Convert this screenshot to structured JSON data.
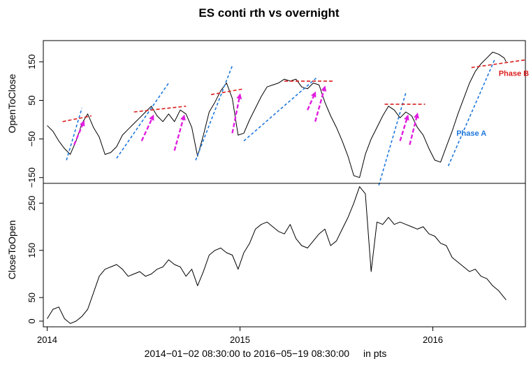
{
  "chart_data": {
    "type": "line",
    "title": "ES conti rth vs overnight",
    "xlabel": "2014−01−02 08:30:00 to 2016−05−19 08:30:00",
    "xlabel_unit": "in pts",
    "x_ticks": [
      {
        "label": "2014",
        "value": 2014.0
      },
      {
        "label": "2015",
        "value": 2015.0
      },
      {
        "label": "2016",
        "value": 2016.0
      }
    ],
    "xlim": [
      2013.98,
      2016.48
    ],
    "colors": {
      "series": "#000000",
      "trend_lines": "#1e78dc",
      "resistance_lines": "#dc1e1e",
      "arrows": "#e01ee0"
    },
    "panels": [
      {
        "name": "top",
        "ylabel": "OpenToClose",
        "ylim": [
          -165,
          205
        ],
        "y_ticks": [
          -150,
          -50,
          50,
          150
        ],
        "y_tick_labels": [
          "−150",
          "−50",
          "50",
          "150"
        ],
        "x": [
          2014.0,
          2014.03,
          2014.06,
          2014.09,
          2014.12,
          2014.15,
          2014.18,
          2014.21,
          2014.24,
          2014.27,
          2014.3,
          2014.33,
          2014.36,
          2014.39,
          2014.42,
          2014.45,
          2014.48,
          2014.51,
          2014.54,
          2014.57,
          2014.6,
          2014.63,
          2014.66,
          2014.69,
          2014.72,
          2014.75,
          2014.78,
          2014.81,
          2014.84,
          2014.87,
          2014.9,
          2014.93,
          2014.96,
          2014.99,
          2015.02,
          2015.05,
          2015.08,
          2015.11,
          2015.14,
          2015.17,
          2015.2,
          2015.23,
          2015.26,
          2015.29,
          2015.32,
          2015.35,
          2015.38,
          2015.41,
          2015.44,
          2015.47,
          2015.5,
          2015.53,
          2015.56,
          2015.59,
          2015.62,
          2015.65,
          2015.68,
          2015.71,
          2015.74,
          2015.77,
          2015.8,
          2015.83,
          2015.86,
          2015.89,
          2015.92,
          2015.95,
          2015.98,
          2016.01,
          2016.04,
          2016.07,
          2016.1,
          2016.13,
          2016.16,
          2016.19,
          2016.22,
          2016.25,
          2016.28,
          2016.31,
          2016.34,
          2016.37,
          2016.38
        ],
        "y": [
          -15,
          -30,
          -55,
          -75,
          -90,
          -55,
          -10,
          15,
          -20,
          -45,
          -90,
          -85,
          -70,
          -40,
          -25,
          -10,
          5,
          20,
          35,
          10,
          -5,
          15,
          -5,
          25,
          15,
          -20,
          -95,
          -40,
          20,
          45,
          75,
          95,
          55,
          -40,
          -35,
          0,
          30,
          60,
          85,
          90,
          95,
          105,
          100,
          105,
          85,
          80,
          95,
          90,
          45,
          10,
          -20,
          -55,
          -95,
          -145,
          -150,
          -90,
          -50,
          -20,
          10,
          35,
          25,
          5,
          20,
          10,
          -20,
          -40,
          -75,
          -105,
          -110,
          -70,
          -30,
          15,
          55,
          95,
          125,
          145,
          160,
          175,
          170,
          160,
          150
        ],
        "trend_lines": [
          {
            "x": [
              2014.1,
              2014.18
            ],
            "y": [
              -105,
              30
            ]
          },
          {
            "x": [
              2014.36,
              2014.63
            ],
            "y": [
              -100,
              95
            ]
          },
          {
            "x": [
              2014.77,
              2014.96
            ],
            "y": [
              -105,
              140
            ]
          },
          {
            "x": [
              2015.02,
              2015.4
            ],
            "y": [
              -55,
              110
            ]
          },
          {
            "x": [
              2015.72,
              2015.86
            ],
            "y": [
              -170,
              70
            ]
          },
          {
            "x": [
              2016.08,
              2016.32
            ],
            "y": [
              -120,
              155
            ]
          }
        ],
        "resistance_lines": [
          {
            "x": [
              2014.08,
              2014.23
            ],
            "y": [
              -5,
              10
            ]
          },
          {
            "x": [
              2014.45,
              2014.72
            ],
            "y": [
              20,
              35
            ]
          },
          {
            "x": [
              2014.85,
              2015.02
            ],
            "y": [
              65,
              80
            ]
          },
          {
            "x": [
              2015.23,
              2015.48
            ],
            "y": [
              100,
              100
            ]
          },
          {
            "x": [
              2015.75,
              2015.96
            ],
            "y": [
              40,
              40
            ]
          },
          {
            "x": [
              2016.2,
              2016.48
            ],
            "y": [
              135,
              155
            ]
          }
        ],
        "arrows": [
          {
            "from": [
              2014.14,
              -65
            ],
            "to": [
              2014.19,
              -5
            ]
          },
          {
            "from": [
              2014.49,
              -55
            ],
            "to": [
              2014.55,
              10
            ]
          },
          {
            "from": [
              2014.66,
              -80
            ],
            "to": [
              2014.71,
              10
            ]
          },
          {
            "from": [
              2014.96,
              -35
            ],
            "to": [
              2015.0,
              65
            ]
          },
          {
            "from": [
              2015.35,
              25
            ],
            "to": [
              2015.39,
              70
            ]
          },
          {
            "from": [
              2015.39,
              -5
            ],
            "to": [
              2015.44,
              85
            ]
          },
          {
            "from": [
              2015.83,
              -55
            ],
            "to": [
              2015.87,
              10
            ]
          },
          {
            "from": [
              2015.88,
              -65
            ],
            "to": [
              2015.92,
              15
            ]
          }
        ],
        "annotations": [
          {
            "text": "Phase A",
            "x": 2016.2,
            "y": -42,
            "color": "#1e78dc"
          },
          {
            "text": "Phase B",
            "x": 2016.42,
            "y": 113,
            "color": "#dc1e1e"
          }
        ]
      },
      {
        "name": "bottom",
        "ylabel": "CloseToOpen",
        "ylim": [
          -12,
          292
        ],
        "y_ticks": [
          0,
          50,
          150,
          250
        ],
        "y_tick_labels": [
          "0",
          "50",
          "150",
          "250"
        ],
        "x": [
          2014.0,
          2014.03,
          2014.06,
          2014.09,
          2014.12,
          2014.15,
          2014.18,
          2014.21,
          2014.24,
          2014.27,
          2014.3,
          2014.33,
          2014.36,
          2014.39,
          2014.42,
          2014.45,
          2014.48,
          2014.51,
          2014.54,
          2014.57,
          2014.6,
          2014.63,
          2014.66,
          2014.69,
          2014.72,
          2014.75,
          2014.78,
          2014.81,
          2014.84,
          2014.87,
          2014.9,
          2014.93,
          2014.96,
          2014.99,
          2015.02,
          2015.05,
          2015.08,
          2015.11,
          2015.14,
          2015.17,
          2015.2,
          2015.23,
          2015.26,
          2015.29,
          2015.32,
          2015.35,
          2015.38,
          2015.41,
          2015.44,
          2015.47,
          2015.5,
          2015.53,
          2015.56,
          2015.59,
          2015.62,
          2015.65,
          2015.68,
          2015.71,
          2015.74,
          2015.77,
          2015.8,
          2015.83,
          2015.86,
          2015.89,
          2015.92,
          2015.95,
          2015.98,
          2016.01,
          2016.04,
          2016.07,
          2016.1,
          2016.13,
          2016.16,
          2016.19,
          2016.22,
          2016.25,
          2016.28,
          2016.31,
          2016.34,
          2016.37,
          2016.38
        ],
        "y": [
          5,
          25,
          30,
          5,
          -5,
          0,
          10,
          25,
          60,
          95,
          110,
          115,
          120,
          110,
          95,
          100,
          105,
          95,
          100,
          110,
          115,
          130,
          120,
          115,
          95,
          110,
          75,
          105,
          140,
          150,
          155,
          145,
          140,
          110,
          145,
          165,
          195,
          205,
          210,
          200,
          190,
          185,
          205,
          175,
          160,
          155,
          170,
          185,
          195,
          160,
          170,
          195,
          220,
          250,
          285,
          270,
          105,
          210,
          205,
          220,
          205,
          210,
          205,
          200,
          195,
          200,
          185,
          180,
          165,
          160,
          135,
          125,
          115,
          105,
          110,
          95,
          90,
          75,
          65,
          50,
          45
        ]
      }
    ]
  }
}
